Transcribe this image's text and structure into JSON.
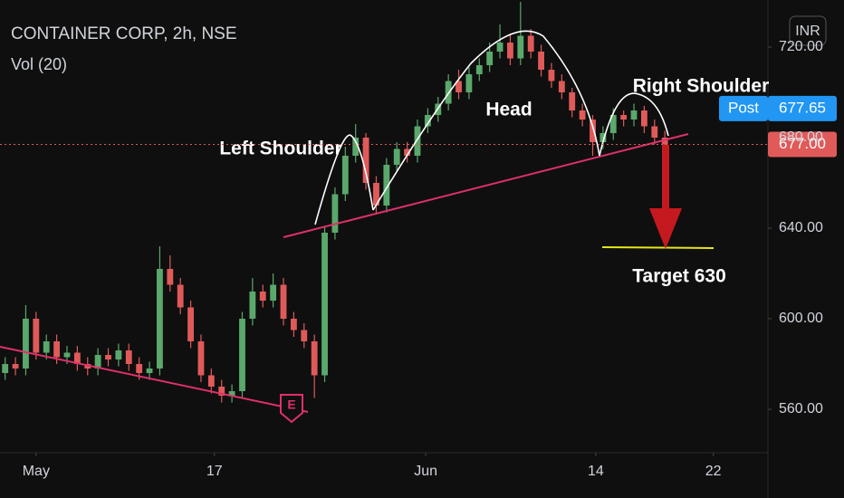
{
  "chart_data": {
    "type": "candlestick",
    "title": "CONTAINER CORP, 2h, NSE",
    "subtitle": "Vol (20)",
    "currency": "INR",
    "event_marker": "E",
    "annotations": [
      "Left Shoulder",
      "Head",
      "Right Shoulder",
      "Target 630"
    ],
    "post_price": {
      "value": 677.65,
      "label": "677.65",
      "name": "Post"
    },
    "last_price": {
      "value": 677,
      "label": "677.00"
    },
    "up_color": "#5aa86c",
    "down_color": "#e05a5a",
    "xlim": [
      -0.5,
      74
    ],
    "xticks": [
      {
        "value": 3,
        "label": "May"
      },
      {
        "value": 20.3,
        "label": "17"
      },
      {
        "value": 40.8,
        "label": "Jun"
      },
      {
        "value": 57.3,
        "label": "14"
      },
      {
        "value": 68.7,
        "label": "22"
      }
    ],
    "ylim": [
      540.8,
      740.8
    ],
    "yticks": [
      {
        "value": 560,
        "label": "560.00"
      },
      {
        "value": 600,
        "label": "600.00"
      },
      {
        "value": 640,
        "label": "640.00"
      },
      {
        "value": 680,
        "label": "680.00"
      },
      {
        "value": 720,
        "label": "720.00"
      }
    ],
    "open": [
      576,
      580,
      578,
      600,
      585,
      590,
      583,
      585,
      580,
      578,
      584,
      582,
      586,
      580,
      576,
      578,
      622,
      615,
      605,
      590,
      575,
      570,
      566,
      568,
      600,
      612,
      608,
      615,
      600,
      595,
      590,
      575,
      638,
      655,
      672,
      680,
      660,
      650,
      668,
      675,
      672,
      685,
      690,
      695,
      705,
      700,
      708,
      712,
      718,
      722,
      715,
      725,
      718,
      710,
      705,
      700,
      692,
      688,
      678,
      682,
      690,
      688,
      692,
      685,
      680
    ],
    "high": [
      583,
      583,
      606,
      603,
      593,
      593,
      588,
      588,
      583,
      587,
      587,
      589,
      589,
      583,
      581,
      632,
      628,
      618,
      608,
      593,
      578,
      573,
      571,
      603,
      618,
      615,
      620,
      618,
      603,
      598,
      593,
      641,
      658,
      676,
      686,
      682,
      663,
      671,
      678,
      678,
      688,
      693,
      698,
      708,
      710,
      711,
      715,
      722,
      730,
      726,
      740,
      728,
      721,
      713,
      708,
      702,
      695,
      690,
      685,
      693,
      692,
      695,
      694,
      688,
      683
    ],
    "low": [
      573,
      575,
      575,
      582,
      582,
      580,
      580,
      577,
      575,
      575,
      579,
      579,
      577,
      573,
      573,
      575,
      612,
      602,
      587,
      572,
      567,
      563,
      563,
      565,
      597,
      605,
      605,
      597,
      592,
      587,
      565,
      572,
      635,
      652,
      669,
      657,
      646,
      647,
      665,
      669,
      669,
      682,
      687,
      692,
      697,
      697,
      705,
      709,
      715,
      712,
      712,
      715,
      707,
      702,
      697,
      689,
      685,
      672,
      675,
      679,
      685,
      685,
      682,
      677,
      674
    ],
    "close": [
      580,
      578,
      600,
      585,
      590,
      583,
      585,
      580,
      578,
      584,
      582,
      586,
      580,
      576,
      578,
      622,
      615,
      605,
      590,
      575,
      570,
      566,
      568,
      600,
      612,
      608,
      615,
      600,
      595,
      590,
      575,
      638,
      655,
      672,
      680,
      660,
      650,
      668,
      675,
      672,
      685,
      690,
      695,
      705,
      700,
      708,
      712,
      718,
      722,
      715,
      725,
      718,
      710,
      705,
      700,
      692,
      688,
      678,
      682,
      690,
      688,
      692,
      685,
      680,
      677
    ]
  }
}
